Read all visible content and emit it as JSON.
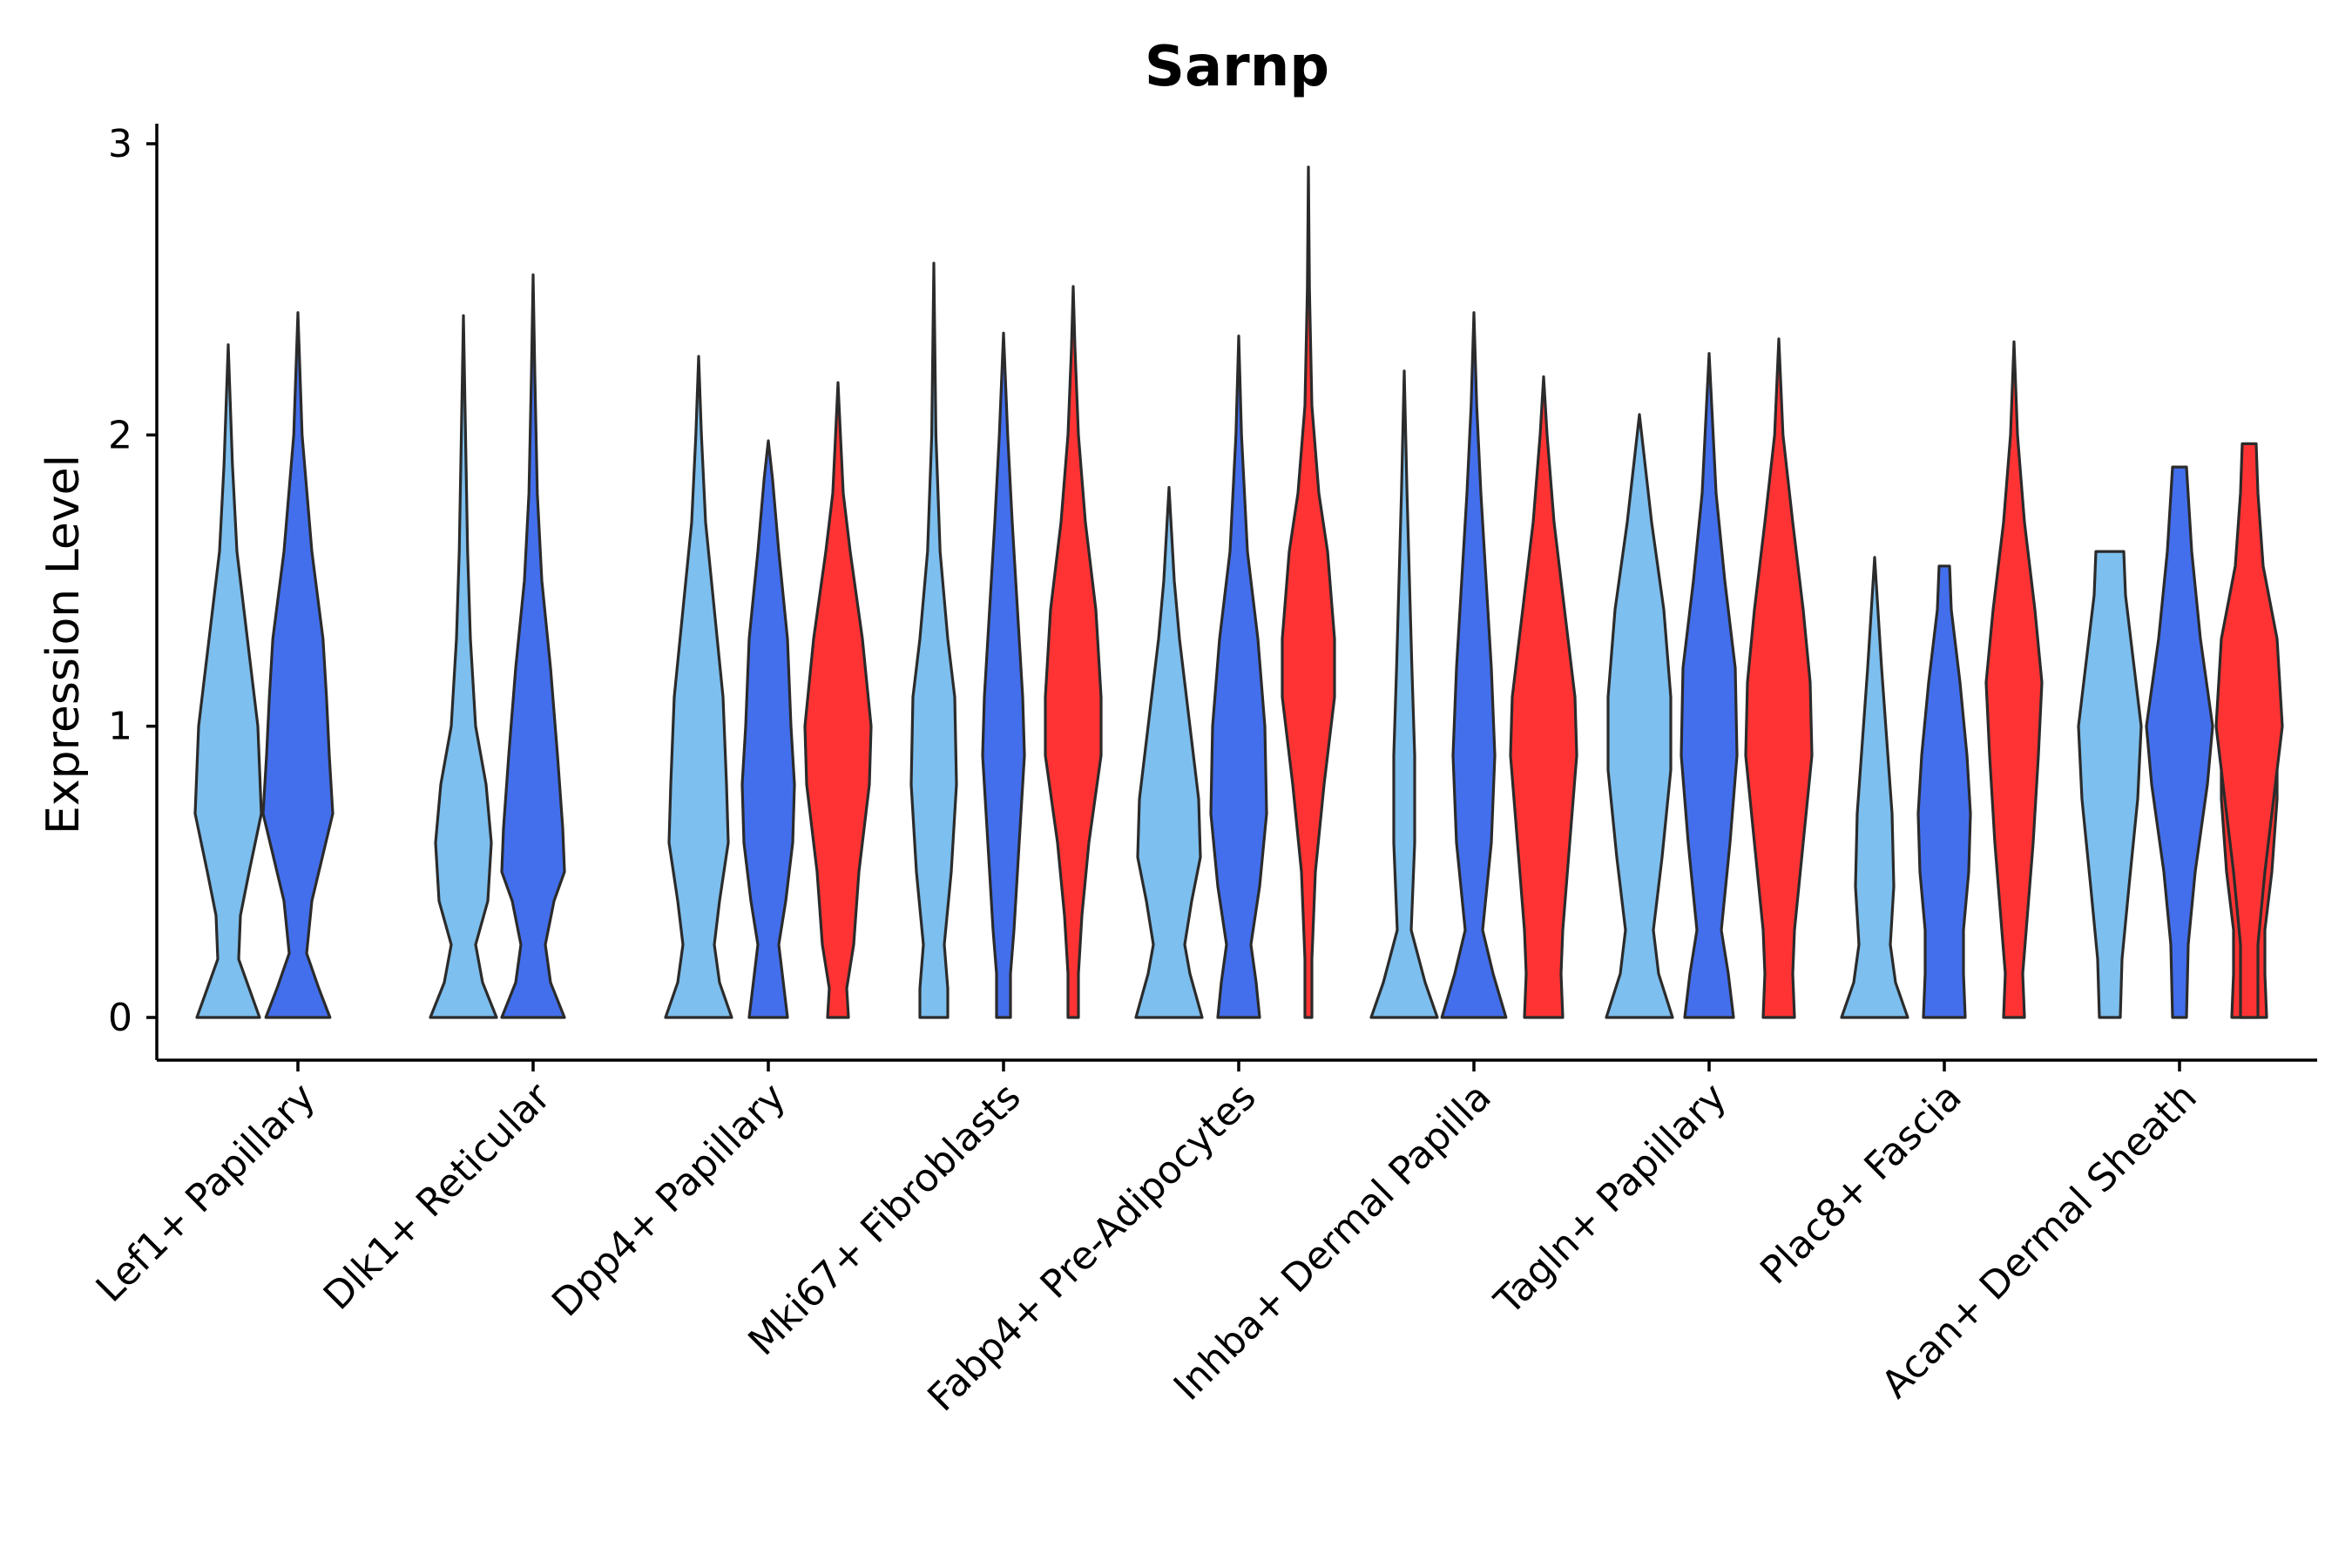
{
  "chart_data": {
    "type": "violin",
    "title": "Sarnp",
    "xlabel": "",
    "ylabel": "Expression Level",
    "ylim": [
      -0.15,
      3.05
    ],
    "yticks": [
      0,
      1,
      2,
      3
    ],
    "group_colors": [
      "#7dbfee",
      "#436fed",
      "#ff3333"
    ],
    "categories": [
      "Lef1+ Papillary",
      "Dlk1+ Reticular",
      "Dpp4+ Papillary",
      "Mki67+ Fibroblasts",
      "Fabp4+ Pre-Adipocytes",
      "Inhba+ Dermal Papilla",
      "Tagln+ Papillary",
      "Plac8+ Fascia",
      "Acan+ Dermal Sheath"
    ],
    "violins": [
      {
        "category": 0,
        "group": 0,
        "max": 2.31,
        "density": [
          [
            0,
            0.9
          ],
          [
            0.1,
            0.6
          ],
          [
            0.2,
            0.3
          ],
          [
            0.35,
            0.35
          ],
          [
            0.5,
            0.6
          ],
          [
            0.7,
            0.95
          ],
          [
            0.85,
            0.9
          ],
          [
            1.0,
            0.85
          ],
          [
            1.3,
            0.55
          ],
          [
            1.6,
            0.25
          ],
          [
            1.9,
            0.12
          ],
          [
            2.31,
            0.0
          ]
        ]
      },
      {
        "category": 0,
        "group": 1,
        "max": 2.42,
        "density": [
          [
            0,
            0.92
          ],
          [
            0.1,
            0.6
          ],
          [
            0.22,
            0.25
          ],
          [
            0.4,
            0.4
          ],
          [
            0.55,
            0.7
          ],
          [
            0.7,
            1.0
          ],
          [
            0.9,
            0.9
          ],
          [
            1.1,
            0.82
          ],
          [
            1.3,
            0.72
          ],
          [
            1.6,
            0.4
          ],
          [
            2.0,
            0.12
          ],
          [
            2.42,
            0.0
          ]
        ]
      },
      {
        "category": 1,
        "group": 0,
        "max": 2.41,
        "density": [
          [
            0,
            0.95
          ],
          [
            0.12,
            0.55
          ],
          [
            0.25,
            0.35
          ],
          [
            0.4,
            0.7
          ],
          [
            0.6,
            0.8
          ],
          [
            0.8,
            0.65
          ],
          [
            1.0,
            0.35
          ],
          [
            1.3,
            0.2
          ],
          [
            1.6,
            0.12
          ],
          [
            2.0,
            0.06
          ],
          [
            2.41,
            0.0
          ]
        ]
      },
      {
        "category": 1,
        "group": 1,
        "max": 2.55,
        "density": [
          [
            0,
            0.9
          ],
          [
            0.12,
            0.5
          ],
          [
            0.25,
            0.35
          ],
          [
            0.4,
            0.6
          ],
          [
            0.5,
            0.9
          ],
          [
            0.65,
            0.85
          ],
          [
            0.9,
            0.7
          ],
          [
            1.2,
            0.5
          ],
          [
            1.5,
            0.25
          ],
          [
            1.8,
            0.12
          ],
          [
            2.2,
            0.05
          ],
          [
            2.55,
            0.0
          ]
        ]
      },
      {
        "category": 2,
        "group": 2,
        "max": 2.18,
        "density": [
          [
            0,
            0.3
          ],
          [
            0.1,
            0.25
          ],
          [
            0.25,
            0.45
          ],
          [
            0.5,
            0.6
          ],
          [
            0.8,
            0.9
          ],
          [
            1.0,
            0.95
          ],
          [
            1.3,
            0.7
          ],
          [
            1.6,
            0.35
          ],
          [
            1.8,
            0.15
          ],
          [
            2.0,
            0.07
          ],
          [
            2.18,
            0.0
          ]
        ]
      },
      {
        "category": 2,
        "group": 0,
        "max": 2.27,
        "density": [
          [
            0,
            0.95
          ],
          [
            0.12,
            0.6
          ],
          [
            0.25,
            0.45
          ],
          [
            0.4,
            0.6
          ],
          [
            0.6,
            0.85
          ],
          [
            0.8,
            0.8
          ],
          [
            1.1,
            0.7
          ],
          [
            1.4,
            0.45
          ],
          [
            1.7,
            0.2
          ],
          [
            2.0,
            0.08
          ],
          [
            2.27,
            0.0
          ]
        ]
      },
      {
        "category": 2,
        "group": 1,
        "max": 1.98,
        "density": [
          [
            0,
            0.55
          ],
          [
            0.1,
            0.45
          ],
          [
            0.25,
            0.3
          ],
          [
            0.4,
            0.5
          ],
          [
            0.6,
            0.7
          ],
          [
            0.8,
            0.75
          ],
          [
            1.0,
            0.65
          ],
          [
            1.3,
            0.55
          ],
          [
            1.6,
            0.3
          ],
          [
            1.85,
            0.12
          ],
          [
            1.98,
            0.0
          ]
        ]
      },
      {
        "category": 3,
        "group": 2,
        "max": 2.51,
        "density": [
          [
            0,
            0.15
          ],
          [
            0.15,
            0.15
          ],
          [
            0.35,
            0.25
          ],
          [
            0.6,
            0.45
          ],
          [
            0.9,
            0.8
          ],
          [
            1.1,
            0.8
          ],
          [
            1.4,
            0.65
          ],
          [
            1.7,
            0.35
          ],
          [
            2.0,
            0.15
          ],
          [
            2.3,
            0.05
          ],
          [
            2.51,
            0.0
          ]
        ]
      },
      {
        "category": 3,
        "group": 0,
        "max": 2.59,
        "density": [
          [
            0,
            0.4
          ],
          [
            0.1,
            0.4
          ],
          [
            0.25,
            0.3
          ],
          [
            0.5,
            0.5
          ],
          [
            0.8,
            0.65
          ],
          [
            1.1,
            0.6
          ],
          [
            1.3,
            0.4
          ],
          [
            1.6,
            0.18
          ],
          [
            2.0,
            0.06
          ],
          [
            2.59,
            0.0
          ]
        ]
      },
      {
        "category": 3,
        "group": 1,
        "max": 2.35,
        "density": [
          [
            0,
            0.2
          ],
          [
            0.15,
            0.2
          ],
          [
            0.3,
            0.3
          ],
          [
            0.6,
            0.45
          ],
          [
            0.9,
            0.6
          ],
          [
            1.1,
            0.55
          ],
          [
            1.4,
            0.4
          ],
          [
            1.7,
            0.25
          ],
          [
            2.0,
            0.12
          ],
          [
            2.35,
            0.0
          ]
        ]
      },
      {
        "category": 4,
        "group": 2,
        "max": 2.92,
        "density": [
          [
            0,
            0.1
          ],
          [
            0.2,
            0.1
          ],
          [
            0.5,
            0.2
          ],
          [
            0.8,
            0.45
          ],
          [
            1.1,
            0.75
          ],
          [
            1.3,
            0.75
          ],
          [
            1.6,
            0.55
          ],
          [
            1.8,
            0.3
          ],
          [
            2.1,
            0.1
          ],
          [
            2.5,
            0.03
          ],
          [
            2.92,
            0.0
          ]
        ]
      },
      {
        "category": 4,
        "group": 0,
        "max": 1.82,
        "density": [
          [
            0,
            0.95
          ],
          [
            0.15,
            0.6
          ],
          [
            0.25,
            0.45
          ],
          [
            0.4,
            0.65
          ],
          [
            0.55,
            0.9
          ],
          [
            0.75,
            0.85
          ],
          [
            1.0,
            0.6
          ],
          [
            1.3,
            0.3
          ],
          [
            1.5,
            0.15
          ],
          [
            1.82,
            0.0
          ]
        ]
      },
      {
        "category": 4,
        "group": 1,
        "max": 2.34,
        "density": [
          [
            0,
            0.6
          ],
          [
            0.12,
            0.5
          ],
          [
            0.25,
            0.35
          ],
          [
            0.45,
            0.6
          ],
          [
            0.7,
            0.8
          ],
          [
            1.0,
            0.75
          ],
          [
            1.3,
            0.55
          ],
          [
            1.6,
            0.25
          ],
          [
            2.0,
            0.08
          ],
          [
            2.34,
            0.0
          ]
        ]
      },
      {
        "category": 5,
        "group": 2,
        "max": 2.2,
        "density": [
          [
            0,
            0.55
          ],
          [
            0.15,
            0.5
          ],
          [
            0.3,
            0.55
          ],
          [
            0.6,
            0.75
          ],
          [
            0.9,
            0.95
          ],
          [
            1.1,
            0.9
          ],
          [
            1.4,
            0.6
          ],
          [
            1.7,
            0.3
          ],
          [
            2.0,
            0.1
          ],
          [
            2.2,
            0.0
          ]
        ]
      },
      {
        "category": 5,
        "group": 0,
        "max": 2.22,
        "density": [
          [
            0,
            0.95
          ],
          [
            0.12,
            0.6
          ],
          [
            0.3,
            0.2
          ],
          [
            0.6,
            0.3
          ],
          [
            0.9,
            0.3
          ],
          [
            1.2,
            0.22
          ],
          [
            1.5,
            0.15
          ],
          [
            1.8,
            0.08
          ],
          [
            2.22,
            0.0
          ]
        ]
      },
      {
        "category": 5,
        "group": 1,
        "max": 2.42,
        "density": [
          [
            0,
            0.92
          ],
          [
            0.15,
            0.55
          ],
          [
            0.3,
            0.25
          ],
          [
            0.6,
            0.5
          ],
          [
            0.9,
            0.6
          ],
          [
            1.2,
            0.5
          ],
          [
            1.5,
            0.35
          ],
          [
            1.8,
            0.2
          ],
          [
            2.1,
            0.08
          ],
          [
            2.42,
            0.0
          ]
        ]
      },
      {
        "category": 6,
        "group": 2,
        "max": 2.33,
        "density": [
          [
            0,
            0.45
          ],
          [
            0.15,
            0.4
          ],
          [
            0.3,
            0.45
          ],
          [
            0.6,
            0.7
          ],
          [
            0.9,
            0.95
          ],
          [
            1.15,
            0.9
          ],
          [
            1.4,
            0.7
          ],
          [
            1.7,
            0.4
          ],
          [
            2.0,
            0.12
          ],
          [
            2.33,
            0.0
          ]
        ]
      },
      {
        "category": 6,
        "group": 0,
        "max": 2.07,
        "density": [
          [
            0,
            0.95
          ],
          [
            0.15,
            0.55
          ],
          [
            0.3,
            0.4
          ],
          [
            0.55,
            0.65
          ],
          [
            0.85,
            0.9
          ],
          [
            1.1,
            0.9
          ],
          [
            1.4,
            0.7
          ],
          [
            1.7,
            0.35
          ],
          [
            2.07,
            0.0
          ]
        ]
      },
      {
        "category": 6,
        "group": 1,
        "max": 2.28,
        "density": [
          [
            0,
            0.7
          ],
          [
            0.15,
            0.55
          ],
          [
            0.3,
            0.35
          ],
          [
            0.6,
            0.6
          ],
          [
            0.9,
            0.8
          ],
          [
            1.2,
            0.75
          ],
          [
            1.5,
            0.45
          ],
          [
            1.8,
            0.2
          ],
          [
            2.28,
            0.0
          ]
        ]
      },
      {
        "category": 7,
        "group": 2,
        "max": 2.32,
        "density": [
          [
            0,
            0.3
          ],
          [
            0.15,
            0.25
          ],
          [
            0.3,
            0.35
          ],
          [
            0.6,
            0.55
          ],
          [
            0.9,
            0.7
          ],
          [
            1.15,
            0.8
          ],
          [
            1.4,
            0.6
          ],
          [
            1.7,
            0.3
          ],
          [
            2.0,
            0.1
          ],
          [
            2.32,
            0.0
          ]
        ]
      },
      {
        "category": 7,
        "group": 0,
        "max": 1.58,
        "density": [
          [
            0,
            0.95
          ],
          [
            0.12,
            0.6
          ],
          [
            0.25,
            0.45
          ],
          [
            0.45,
            0.55
          ],
          [
            0.7,
            0.5
          ],
          [
            0.95,
            0.35
          ],
          [
            1.2,
            0.2
          ],
          [
            1.58,
            0.0
          ]
        ]
      },
      {
        "category": 7,
        "group": 1,
        "max": 1.55,
        "density": [
          [
            0,
            0.6
          ],
          [
            0.15,
            0.55
          ],
          [
            0.3,
            0.55
          ],
          [
            0.5,
            0.7
          ],
          [
            0.7,
            0.75
          ],
          [
            0.9,
            0.65
          ],
          [
            1.15,
            0.45
          ],
          [
            1.4,
            0.2
          ],
          [
            1.55,
            0.15
          ]
        ]
      },
      {
        "category": 8,
        "group": 2,
        "max": 1.66,
        "density": [
          [
            0,
            0.5
          ],
          [
            0.15,
            0.45
          ],
          [
            0.3,
            0.45
          ],
          [
            0.5,
            0.65
          ],
          [
            0.75,
            0.8
          ],
          [
            1.0,
            0.8
          ],
          [
            1.2,
            0.55
          ],
          [
            1.45,
            0.3
          ],
          [
            1.66,
            0.1
          ]
        ]
      },
      {
        "category": 8,
        "group": 0,
        "max": 1.6,
        "density": [
          [
            0,
            0.3
          ],
          [
            0.2,
            0.35
          ],
          [
            0.45,
            0.55
          ],
          [
            0.75,
            0.8
          ],
          [
            1.0,
            0.9
          ],
          [
            1.2,
            0.7
          ],
          [
            1.45,
            0.45
          ],
          [
            1.6,
            0.4
          ]
        ]
      },
      {
        "category": 8,
        "group": 1,
        "max": 1.89,
        "density": [
          [
            0,
            0.2
          ],
          [
            0.25,
            0.25
          ],
          [
            0.5,
            0.45
          ],
          [
            0.8,
            0.8
          ],
          [
            1.0,
            0.95
          ],
          [
            1.3,
            0.6
          ],
          [
            1.6,
            0.35
          ],
          [
            1.89,
            0.2
          ]
        ]
      },
      {
        "category": 8,
        "group": 2,
        "max": 1.97,
        "density": [
          [
            0,
            0.25
          ],
          [
            0.25,
            0.25
          ],
          [
            0.5,
            0.45
          ],
          [
            0.75,
            0.7
          ],
          [
            1.0,
            0.95
          ],
          [
            1.3,
            0.8
          ],
          [
            1.55,
            0.4
          ],
          [
            1.8,
            0.25
          ],
          [
            1.97,
            0.2
          ]
        ]
      }
    ]
  }
}
